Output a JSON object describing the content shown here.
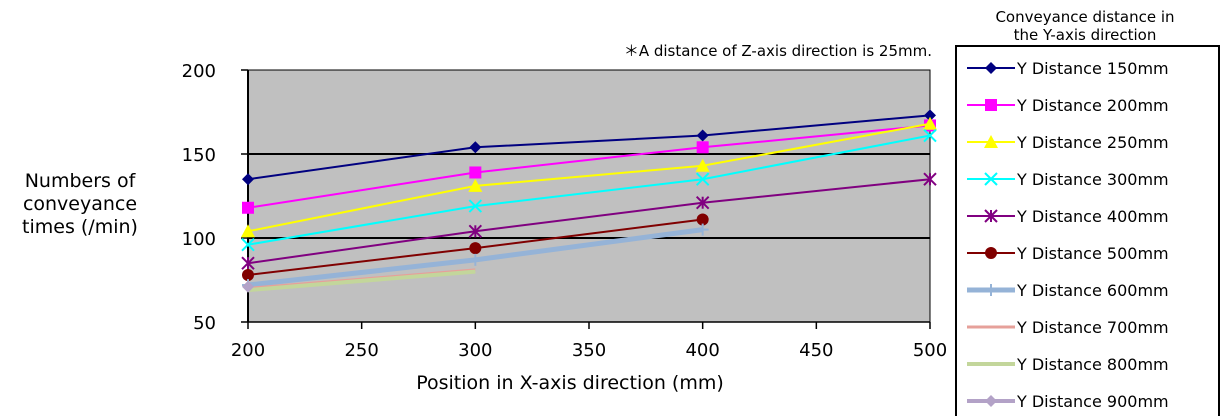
{
  "chart_data": {
    "type": "line",
    "note": "＊A distance of Z-axis direction is 25mm.",
    "xlabel": "Position in X-axis direction (mm)",
    "ylabel_lines": [
      "Numbers of",
      "conveyance",
      "times (/min)"
    ],
    "xlim": [
      200,
      500
    ],
    "ylim": [
      50,
      200
    ],
    "xticks": [
      200,
      250,
      300,
      350,
      400,
      450,
      500
    ],
    "yticks": [
      50,
      100,
      150,
      200
    ],
    "grid": "horizontal major",
    "plot_background": "#c0c0c0",
    "legend_title_lines": [
      "Conveyance distance in",
      "the Y-axis direction"
    ],
    "legend_position": "right",
    "series": [
      {
        "name": "Y Distance 150mm",
        "color": "#000080",
        "marker": "diamond",
        "x": [
          200,
          300,
          400,
          500
        ],
        "y": [
          135,
          154,
          161,
          173
        ]
      },
      {
        "name": "Y Distance 200mm",
        "color": "#ff00ff",
        "marker": "square",
        "x": [
          200,
          300,
          400,
          500
        ],
        "y": [
          118,
          139,
          154,
          167
        ]
      },
      {
        "name": "Y Distance 250mm",
        "color": "#ffff00",
        "marker": "triangle",
        "x": [
          200,
          300,
          400,
          500
        ],
        "y": [
          104,
          131,
          143,
          168
        ]
      },
      {
        "name": "Y Distance 300mm",
        "color": "#00ffff",
        "marker": "x",
        "x": [
          200,
          300,
          400,
          500
        ],
        "y": [
          96,
          119,
          135,
          161
        ]
      },
      {
        "name": "Y Distance 400mm",
        "color": "#800080",
        "marker": "star",
        "x": [
          200,
          300,
          400,
          500
        ],
        "y": [
          85,
          104,
          121,
          135
        ]
      },
      {
        "name": "Y Distance 500mm",
        "color": "#800000",
        "marker": "circle",
        "x": [
          200,
          300,
          400
        ],
        "y": [
          78,
          94,
          111
        ]
      },
      {
        "name": "Y Distance 600mm",
        "color": "#95b3d7",
        "marker": "plus",
        "x": [
          200,
          300,
          400
        ],
        "y": [
          72,
          87,
          105
        ]
      },
      {
        "name": "Y Distance 700mm",
        "color": "#e6a09a",
        "marker": "dash",
        "x": [
          200,
          300
        ],
        "y": [
          70,
          81
        ]
      },
      {
        "name": "Y Distance 800mm",
        "color": "#c3d69b",
        "marker": "dash",
        "x": [
          200,
          300
        ],
        "y": [
          69,
          80
        ]
      },
      {
        "name": "Y Distance 900mm",
        "color": "#b3a2c7",
        "marker": "diamond",
        "x": [
          200
        ],
        "y": [
          71
        ]
      }
    ]
  }
}
